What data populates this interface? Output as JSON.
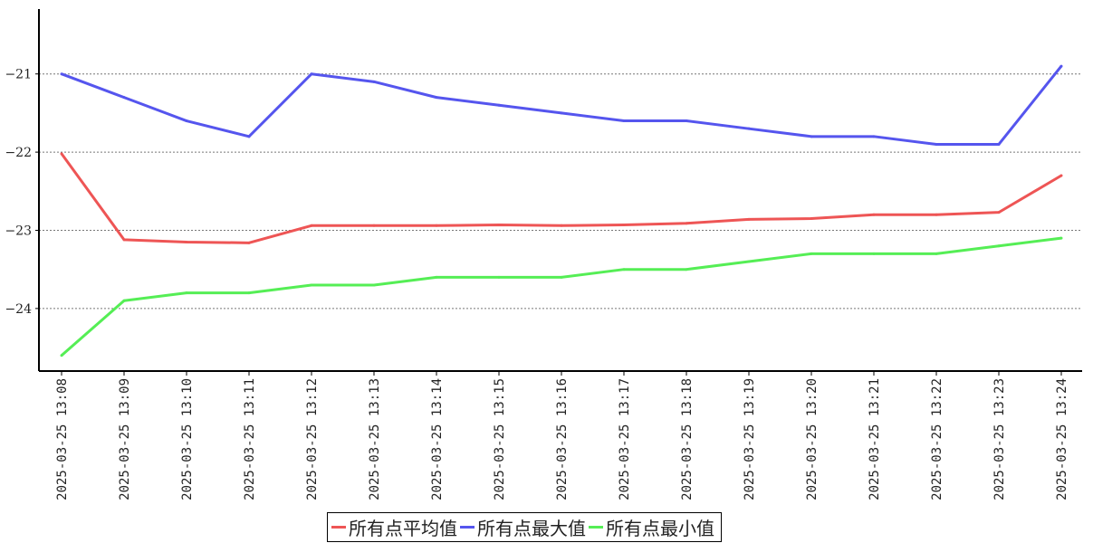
{
  "chart_data": {
    "type": "line",
    "title": "",
    "xlabel": "",
    "ylabel": "",
    "x": [
      "2025-03-25 13:08",
      "2025-03-25 13:09",
      "2025-03-25 13:10",
      "2025-03-25 13:11",
      "2025-03-25 13:12",
      "2025-03-25 13:13",
      "2025-03-25 13:14",
      "2025-03-25 13:15",
      "2025-03-25 13:16",
      "2025-03-25 13:17",
      "2025-03-25 13:18",
      "2025-03-25 13:19",
      "2025-03-25 13:20",
      "2025-03-25 13:21",
      "2025-03-25 13:22",
      "2025-03-25 13:23",
      "2025-03-25 13:24"
    ],
    "ylim": [
      -24.8,
      -20.17
    ],
    "yticks": [
      -21,
      -22,
      -23,
      -24
    ],
    "ytick_labels": [
      "−21",
      "−22",
      "−23",
      "−24"
    ],
    "grid": "horizontal dotted",
    "legend_position": "bottom",
    "series": [
      {
        "name": "所有点平均值",
        "color": "#ee5555",
        "values": [
          -22.02,
          -23.12,
          -23.15,
          -23.16,
          -22.94,
          -22.94,
          -22.94,
          -22.93,
          -22.94,
          -22.93,
          -22.91,
          -22.86,
          -22.85,
          -22.8,
          -22.8,
          -22.77,
          -22.3
        ]
      },
      {
        "name": "所有点最大值",
        "color": "#5555ee",
        "values": [
          -21.0,
          -21.3,
          -21.6,
          -21.8,
          -21.0,
          -21.1,
          -21.3,
          -21.4,
          -21.5,
          -21.6,
          -21.6,
          -21.7,
          -21.8,
          -21.8,
          -21.9,
          -21.9,
          -20.9
        ]
      },
      {
        "name": "所有点最小值",
        "color": "#55ee55",
        "values": [
          -24.6,
          -23.9,
          -23.8,
          -23.8,
          -23.7,
          -23.7,
          -23.6,
          -23.6,
          -23.6,
          -23.5,
          -23.5,
          -23.4,
          -23.3,
          -23.3,
          -23.3,
          -23.2,
          -23.1
        ]
      }
    ]
  }
}
